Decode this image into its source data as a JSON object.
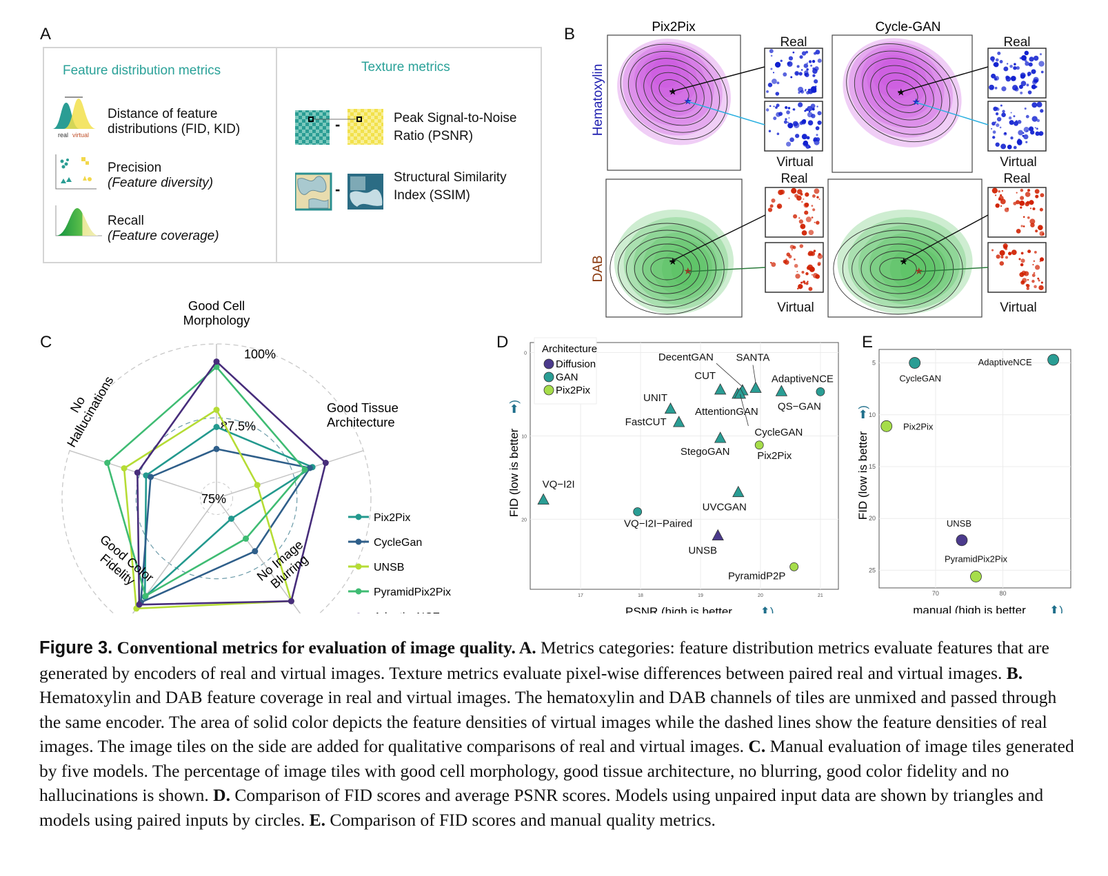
{
  "panels": {
    "a": "A",
    "b": "B",
    "c": "C",
    "d": "D",
    "e": "E"
  },
  "panel_a": {
    "left_title": "Feature distribution metrics",
    "right_title": "Texture metrics",
    "fid_line1": "Distance of feature",
    "fid_line2": "distributions (FID, KID)",
    "fid_icon_real": "real",
    "fid_icon_virtual": "virtual",
    "precision_line1": "Precision",
    "precision_line2": "(Feature diversity)",
    "recall_line1": "Recall",
    "recall_line2": "(Feature coverage)",
    "psnr_line1": "Peak Signal-to-Noise",
    "psnr_line2": "Ratio (PSNR)",
    "ssim_line1": "Structural Similarity",
    "ssim_line2": "Index (SSIM)",
    "minus": "-",
    "colors": {
      "teal": "#2aa198",
      "yellow": "#f2e14c",
      "green": "#1e9e4a"
    }
  },
  "panel_b": {
    "col1": "Pix2Pix",
    "col2": "Cycle-GAN",
    "row1": "Hematoxylin",
    "row2": "DAB",
    "real": "Real",
    "virtual": "Virtual",
    "colors": {
      "hematoxylin": "#c84ee0",
      "dab": "#4fbf5a",
      "tile_h": "#1020d0",
      "tile_d": "#d02000",
      "row1_label": "#2020b0",
      "row2_label": "#8a3a10"
    }
  },
  "chart_data": [
    {
      "type": "radar",
      "panel": "C",
      "axes": [
        "Good Cell Morphology",
        "Good Tissue Architecture",
        "No Image Blurring",
        "Good Color Fidelity",
        "No Hallucinations"
      ],
      "axis_labels": [
        [
          "Good Cell",
          "Morphology"
        ],
        [
          "Good Tissue",
          "Architecture"
        ],
        [
          "No Image",
          "Blurring"
        ],
        [
          "Good Color",
          "Fidelity"
        ],
        [
          "No",
          "Hallucinations"
        ]
      ],
      "ring_labels": [
        "75%",
        "87.5%",
        "100%"
      ],
      "rings": [
        75,
        87.5,
        100
      ],
      "rlim": [
        72.5,
        100
      ],
      "series": [
        {
          "name": "Pix2Pix",
          "color": "#23998e",
          "values": [
            85.8,
            91.3,
            77.2,
            95.2,
            86.3
          ]
        },
        {
          "name": "CycleGan",
          "color": "#2f5f8a",
          "values": [
            81.7,
            90.8,
            84.7,
            96.5,
            85.4
          ]
        },
        {
          "name": "UNSB",
          "color": "#b5dc35",
          "values": [
            89.0,
            80.5,
            96.2,
            97.9,
            90.6
          ]
        },
        {
          "name": "PyramidPix2Pix",
          "color": "#3fbc73",
          "values": [
            97.0,
            89.8,
            81.8,
            95.0,
            93.9
          ]
        },
        {
          "name": "AdaptiveNCE",
          "color": "#472d7b",
          "values": [
            98.0,
            93.9,
            96.2,
            97.0,
            88.0
          ]
        }
      ],
      "legend": "right"
    },
    {
      "type": "scatter",
      "panel": "D",
      "xlabel": "PSNR (high is better",
      "ylabel": "FID (low is better",
      "x_ticks": [
        17,
        18,
        19,
        20,
        21
      ],
      "y_ticks": [
        0,
        10,
        20
      ],
      "xlim": [
        16.16,
        21.3
      ],
      "ylim": [
        -1.2,
        28.4
      ],
      "y_reversed": true,
      "grid": true,
      "legend": {
        "title": "Architecture",
        "placement": "top-left",
        "entries": [
          {
            "name": "Diffusion",
            "color": "#4b3a8c"
          },
          {
            "name": "GAN",
            "color": "#2a9d94"
          },
          {
            "name": "Pix2Pix",
            "color": "#a6dd4a"
          }
        ]
      },
      "points": [
        {
          "label": "VQ−I2I",
          "x": 16.38,
          "y": 17.7,
          "arch": "GAN",
          "shape": "triangle"
        },
        {
          "label": "VQ−I2I−Paired",
          "x": 17.95,
          "y": 19.1,
          "arch": "GAN",
          "shape": "circle"
        },
        {
          "label": "UNIT",
          "x": 18.5,
          "y": 6.8,
          "arch": "GAN",
          "shape": "triangle"
        },
        {
          "label": "FastCUT",
          "x": 18.64,
          "y": 8.4,
          "arch": "GAN",
          "shape": "triangle"
        },
        {
          "label": "CUT",
          "x": 19.33,
          "y": 4.5,
          "arch": "GAN",
          "shape": "triangle"
        },
        {
          "label": "StegoGAN",
          "x": 19.33,
          "y": 10.3,
          "arch": "GAN",
          "shape": "triangle"
        },
        {
          "label": "AttentionGAN",
          "x": 19.62,
          "y": 5.0,
          "arch": "GAN",
          "shape": "triangle"
        },
        {
          "label": "DecentGAN",
          "x": 19.7,
          "y": 4.6,
          "arch": "GAN",
          "shape": "triangle"
        },
        {
          "label": "CycleGAN",
          "x": 19.66,
          "y": 5.0,
          "arch": "GAN",
          "shape": "triangle"
        },
        {
          "label": "SANTA",
          "x": 19.92,
          "y": 4.3,
          "arch": "GAN",
          "shape": "triangle"
        },
        {
          "label": "QS−GAN",
          "x": 20.35,
          "y": 4.7,
          "arch": "GAN",
          "shape": "triangle"
        },
        {
          "label": "AdaptiveNCE",
          "x": 21.0,
          "y": 4.7,
          "arch": "GAN",
          "shape": "circle"
        },
        {
          "label": "Pix2Pix",
          "x": 19.98,
          "y": 11.1,
          "arch": "Pix2Pix",
          "shape": "circle"
        },
        {
          "label": "UVCGAN",
          "x": 19.63,
          "y": 16.8,
          "arch": "GAN",
          "shape": "triangle"
        },
        {
          "label": "UNSB",
          "x": 19.29,
          "y": 22.0,
          "arch": "Diffusion",
          "shape": "triangle"
        },
        {
          "label": "PyramidP2P",
          "x": 20.56,
          "y": 25.7,
          "arch": "Pix2Pix",
          "shape": "circle"
        }
      ]
    },
    {
      "type": "scatter",
      "panel": "E",
      "xlabel": "manual (high is better",
      "ylabel": "FID (low is better",
      "x_ticks": [
        70,
        80
      ],
      "y_ticks": [
        5,
        10,
        15,
        20,
        25
      ],
      "xlim": [
        61.6,
        90.1
      ],
      "ylim": [
        3.7,
        26.7
      ],
      "y_reversed": true,
      "grid": true,
      "points": [
        {
          "label": "CycleGAN",
          "x": 66.9,
          "y": 5.0,
          "arch": "GAN"
        },
        {
          "label": "AdaptiveNCE",
          "x": 87.5,
          "y": 4.7,
          "arch": "GAN"
        },
        {
          "label": "Pix2Pix",
          "x": 62.7,
          "y": 11.1,
          "arch": "Pix2Pix"
        },
        {
          "label": "UNSB",
          "x": 73.9,
          "y": 22.1,
          "arch": "Diffusion"
        },
        {
          "label": "PyramidPix2Pix",
          "x": 76.0,
          "y": 25.6,
          "arch": "Pix2Pix"
        }
      ]
    }
  ],
  "arrow_color": "#1f6f8b",
  "caption": [
    {
      "t": "Figure 3.",
      "s": "fig"
    },
    {
      "t": " "
    },
    {
      "t": "Conventional metrics for evaluation of image quality. A.",
      "s": "b"
    },
    {
      "t": " Metrics categories: feature distribution metrics evaluate features that are generated by encoders of real and virtual images. Texture metrics evaluate pixel-wise differences between paired real and virtual images. "
    },
    {
      "t": "B.",
      "s": "b"
    },
    {
      "t": " Hematoxylin and DAB feature coverage in real and virtual images. The hematoxylin and DAB channels of tiles are unmixed and passed through the same encoder. The area of solid color depicts the feature densities of virtual images while the dashed lines show the feature densities of real images. The image tiles on the side are added for qualitative comparisons of real and virtual images. "
    },
    {
      "t": "C.",
      "s": "b"
    },
    {
      "t": " Manual evaluation of image tiles generated by five models. The percentage of image tiles with good cell morphology, good tissue architecture, no blurring, good color fidelity and no hallucinations is shown. "
    },
    {
      "t": "D.",
      "s": "b"
    },
    {
      "t": " Comparison of FID scores and average PSNR scores. Models using unpaired input data are shown by triangles and models using paired inputs by circles. "
    },
    {
      "t": "E.",
      "s": "b"
    },
    {
      "t": " Comparison of FID scores and manual quality metrics."
    }
  ]
}
